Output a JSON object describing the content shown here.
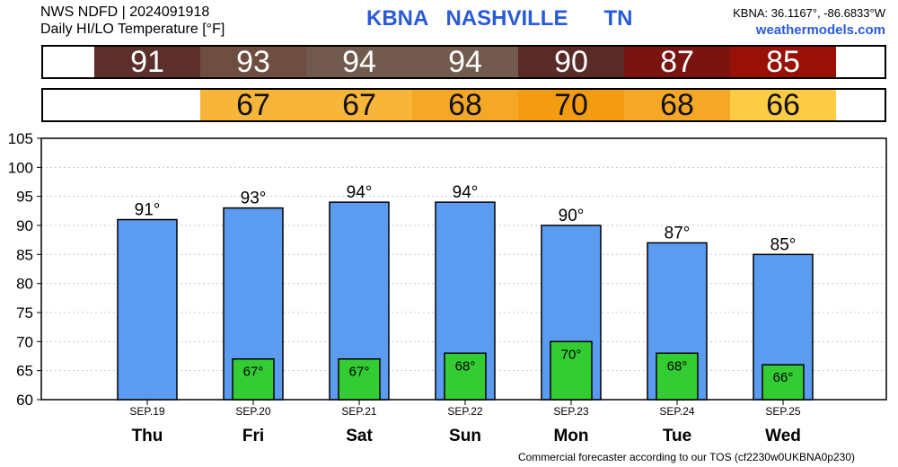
{
  "header": {
    "line1": "NWS NDFD | 2024091918",
    "line2": "Daily HI/LO Temperature [°F]",
    "station": "KBNA   NASHVILLE      TN",
    "coords": "KBNA: 36.1167°, -86.6833°W",
    "site": "weathermodels.com"
  },
  "hi_strip": [
    {
      "value": "91",
      "color": "#5c2f2a"
    },
    {
      "value": "93",
      "color": "#6f4d41"
    },
    {
      "value": "94",
      "color": "#735a4e"
    },
    {
      "value": "94",
      "color": "#735a4e"
    },
    {
      "value": "90",
      "color": "#5a2a27"
    },
    {
      "value": "87",
      "color": "#7a1410"
    },
    {
      "value": "85",
      "color": "#991106"
    }
  ],
  "lo_strip": [
    {
      "value": "",
      "color": "#ffffff"
    },
    {
      "value": "67",
      "color": "#f7b53a"
    },
    {
      "value": "67",
      "color": "#f7b53a"
    },
    {
      "value": "68",
      "color": "#f5a726"
    },
    {
      "value": "70",
      "color": "#f39c12"
    },
    {
      "value": "68",
      "color": "#f5a726"
    },
    {
      "value": "66",
      "color": "#fbcc44"
    }
  ],
  "footer": "Commercial forecaster according to our TOS (cf2230w0UKBNA0p230)",
  "chart_data": {
    "type": "bar",
    "categories": [
      "Thu",
      "Fri",
      "Sat",
      "Sun",
      "Mon",
      "Tue",
      "Wed"
    ],
    "dates": [
      "SEP.19",
      "SEP.20",
      "SEP.21",
      "SEP.22",
      "SEP.23",
      "SEP.24",
      "SEP.25"
    ],
    "series": [
      {
        "values": [
          91,
          93,
          94,
          94,
          90,
          87,
          85
        ],
        "labels": [
          "91°",
          "93°",
          "94°",
          "94°",
          "90°",
          "87°",
          "85°"
        ],
        "color": "#5b9cf0"
      },
      {
        "values": [
          null,
          67,
          67,
          68,
          70,
          68,
          66
        ],
        "labels": [
          "",
          "67°",
          "67°",
          "68°",
          "70°",
          "68°",
          "66°"
        ],
        "color": "#33cc33"
      }
    ],
    "ylim": [
      60,
      105
    ],
    "yticks": [
      60,
      65,
      70,
      75,
      80,
      85,
      90,
      95,
      100,
      105
    ],
    "grid": true
  }
}
